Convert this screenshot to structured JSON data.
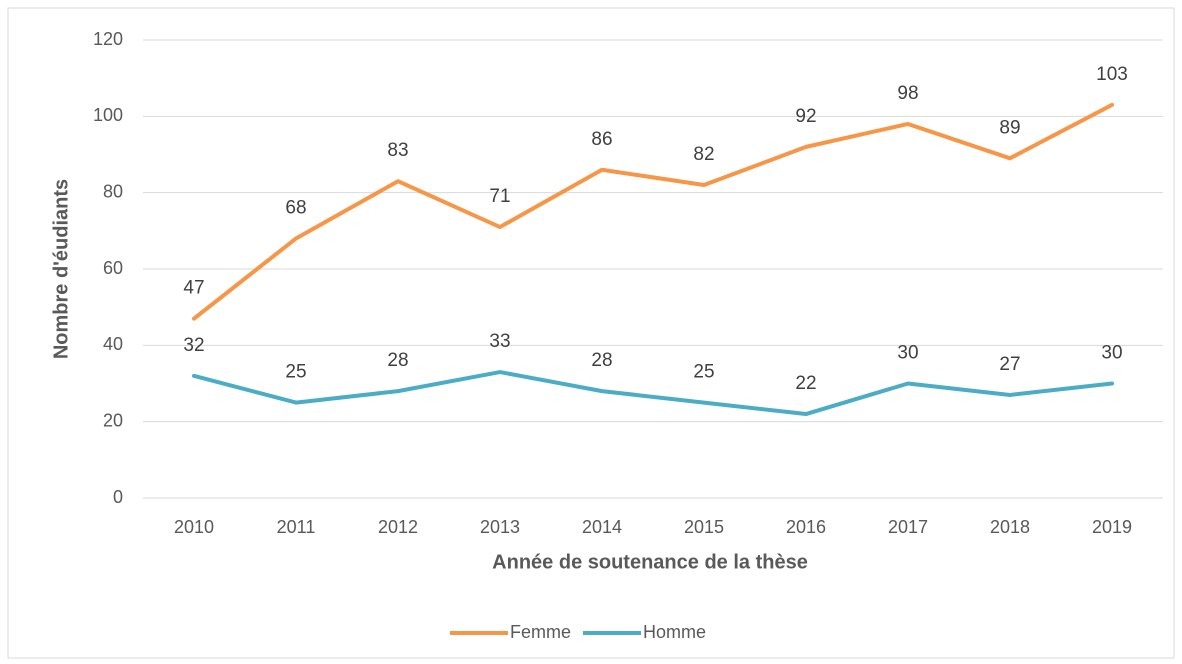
{
  "chart_data": {
    "type": "line",
    "x_label": "Année de soutenance de la thèse",
    "y_label": "Nombre d'éudiants",
    "categories": [
      "2010",
      "2011",
      "2012",
      "2013",
      "2014",
      "2015",
      "2016",
      "2017",
      "2018",
      "2019"
    ],
    "series": [
      {
        "name": "Femme",
        "color": "#f79646",
        "values": [
          47,
          68,
          83,
          71,
          86,
          82,
          92,
          98,
          89,
          103
        ]
      },
      {
        "name": "Homme",
        "color": "#4bacc6",
        "values": [
          32,
          25,
          28,
          33,
          28,
          25,
          22,
          30,
          27,
          30
        ]
      }
    ],
    "ylim": [
      0,
      120
    ],
    "yticks": [
      0,
      20,
      40,
      60,
      80,
      100,
      120
    ],
    "grid": true,
    "legend": "bottom"
  }
}
